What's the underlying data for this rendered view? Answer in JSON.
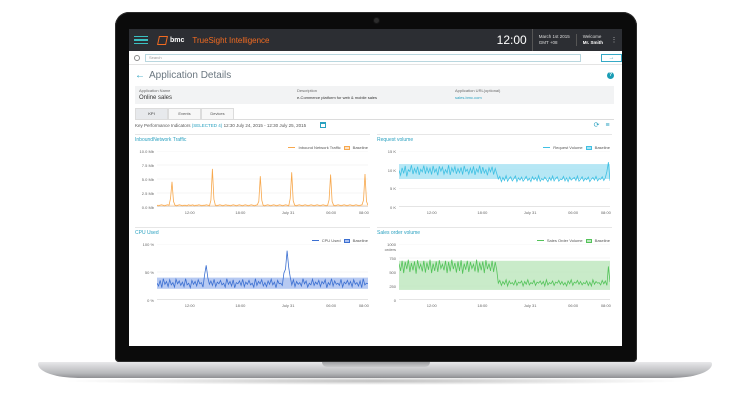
{
  "app": {
    "brand": "bmc",
    "product": "TrueSight Intelligence",
    "time": "12:00",
    "date_line1": "March 1st 2015",
    "date_line2": "GMT +08",
    "welcome_label": "Welcome",
    "user_name": "Mr. Smith",
    "search_placeholder": "Search"
  },
  "page": {
    "title": "Application Details",
    "app_name_label": "Application Name",
    "app_name": "Online sales",
    "description_label": "Description",
    "description": "e-Commerce platform for web & mobile sales",
    "url_label": "Application URL(optional)",
    "url": "sales.bmc.com"
  },
  "tabs": [
    "KPI",
    "Events",
    "Devices"
  ],
  "kpi_range": {
    "prefix": "Key Performance Indicators",
    "selected": "(SELECTED 4)",
    "range": "12:30 July 24, 2015 - 12:30 July 25, 2015"
  },
  "colors": {
    "accent": "#2aa1c0",
    "orange": "#f7a84d",
    "orange_band": "#fde2c5",
    "blue_series": "#3fc0e3",
    "blue_band": "#a9e3f3",
    "cpu": "#3b6fd1",
    "cpu_band": "#a9bff0",
    "green": "#54c35a",
    "green_band": "#bfe8c0",
    "brand_orange": "#f26b21"
  },
  "chart_data": [
    {
      "type": "line",
      "title": "InboundNetwork Traffic",
      "legend": [
        "Inbound Network Traffic",
        "Baseline"
      ],
      "y_ticks": [
        "10.0 Mb",
        "7.5 Mb",
        "5.0 Mb",
        "2.5 Mb",
        "0.0 Mb"
      ],
      "ylim": [
        0,
        10
      ],
      "x_ticks": [
        "12:00",
        "18:00",
        "July 31",
        "06:00",
        "08:00"
      ],
      "series": [
        {
          "name": "Inbound Network Traffic",
          "baseline_band": [
            0.1,
            0.4
          ],
          "values": [
            0.3,
            0.2,
            0.3,
            0.4,
            0.3,
            0.2,
            0.3,
            0.4,
            0.3,
            1.5,
            4.5,
            1.0,
            0.3,
            0.2,
            0.3,
            0.4,
            0.3,
            0.2,
            0.3,
            0.3,
            0.2,
            0.4,
            0.3,
            0.3,
            0.4,
            0.2,
            0.3,
            0.3,
            0.4,
            0.3,
            0.2,
            0.3,
            0.3,
            0.4,
            0.3,
            0.2,
            1.2,
            6.8,
            1.4,
            0.3,
            0.2,
            0.3,
            0.4,
            0.3,
            0.2,
            0.3,
            0.4,
            0.3,
            0.3,
            0.2,
            0.3,
            0.4,
            0.3,
            0.2,
            0.3,
            0.4,
            0.3,
            0.2,
            0.3,
            0.4,
            0.3,
            0.2,
            0.3,
            0.4,
            0.3,
            0.2,
            0.3,
            0.4,
            1.0,
            5.5,
            1.2,
            0.3,
            0.2,
            0.3,
            0.4,
            0.3,
            0.2,
            0.3,
            0.4,
            0.3,
            0.2,
            0.3,
            0.4,
            0.3,
            0.2,
            0.3,
            0.4,
            0.3,
            0.2,
            1.5,
            6.2,
            1.1,
            0.3,
            0.2,
            0.3,
            0.4,
            0.3,
            0.2,
            0.3,
            0.4,
            0.3,
            0.2,
            0.3,
            0.4,
            0.3,
            0.2,
            0.3,
            0.4,
            0.3,
            0.2,
            0.3,
            0.4,
            0.3,
            0.2,
            0.3,
            1.3,
            5.8,
            1.0,
            0.3,
            0.2,
            0.3,
            0.4,
            0.3,
            0.2,
            0.3,
            0.4,
            0.3,
            0.2,
            0.3,
            0.4,
            0.3,
            0.2,
            0.3,
            0.4,
            0.3,
            0.2,
            0.3,
            0.4,
            1.2,
            5.9,
            1.0,
            0.3
          ]
        }
      ]
    },
    {
      "type": "line",
      "title": "Request volume",
      "legend": [
        "Request Volume",
        "Baseline"
      ],
      "y_ticks": [
        "15 K",
        "10 K",
        "5 K",
        "0 K"
      ],
      "ylim": [
        0,
        15
      ],
      "x_ticks": [
        "12:00",
        "18:00",
        "July 31",
        "06:00",
        "08:00"
      ],
      "series": [
        {
          "name": "Request Volume",
          "baseline_band": [
            7.5,
            11.5
          ],
          "values": [
            9.8,
            8.5,
            10.5,
            9.0,
            11.0,
            8.2,
            10.0,
            9.5,
            11.2,
            8.8,
            10.3,
            9.1,
            10.8,
            8.6,
            10.1,
            9.4,
            11.1,
            8.9,
            10.6,
            9.2,
            10.4,
            8.7,
            11.0,
            9.3,
            10.2,
            8.5,
            10.9,
            9.6,
            10.7,
            8.8,
            10.0,
            9.1,
            11.2,
            8.6,
            10.5,
            9.4,
            10.8,
            8.9,
            10.3,
            9.2,
            10.6,
            8.7,
            11.0,
            9.5,
            10.1,
            8.8,
            10.4,
            9.0,
            10.9,
            8.6,
            10.2,
            9.3,
            11.1,
            8.9,
            10.7,
            9.1,
            10.0,
            8.5,
            10.5,
            9.4,
            10.8,
            8.7,
            10.3,
            9.0,
            7.5,
            8.2,
            6.8,
            7.9,
            7.1,
            8.4,
            6.9,
            7.7,
            8.1,
            7.0,
            7.6,
            8.3,
            6.8,
            7.8,
            7.2,
            8.0,
            6.9,
            7.5,
            8.2,
            7.1,
            7.7,
            6.8,
            8.1,
            7.3,
            7.9,
            7.0,
            8.4,
            6.9,
            7.6,
            7.2,
            8.0,
            7.4,
            6.8,
            7.9,
            7.1,
            8.3,
            7.0,
            7.7,
            8.1,
            6.9,
            7.5,
            7.3,
            8.2,
            7.0,
            7.8,
            6.8,
            8.0,
            7.2,
            7.6,
            7.9,
            7.1,
            8.3,
            6.9,
            7.4,
            8.1,
            7.0,
            7.7,
            7.3,
            8.0,
            6.8,
            7.5,
            7.9,
            7.2,
            8.2,
            7.0,
            7.6,
            7.4,
            8.1,
            7.1,
            7.8,
            9.5,
            12.0,
            7.0
          ]
        }
      ]
    },
    {
      "type": "line",
      "title": "CPU Used",
      "legend": [
        "CPU Used",
        "Baseline"
      ],
      "y_ticks": [
        "100 %",
        "50 %",
        "0 %"
      ],
      "ylim": [
        0,
        100
      ],
      "x_ticks": [
        "12:00",
        "18:00",
        "July 31",
        "06:00",
        "08:00"
      ],
      "series": [
        {
          "name": "CPU Used",
          "baseline_band": [
            20,
            40
          ],
          "values": [
            30,
            25,
            35,
            22,
            38,
            28,
            33,
            24,
            36,
            27,
            31,
            23,
            37,
            29,
            34,
            26,
            32,
            24,
            38,
            27,
            30,
            22,
            35,
            28,
            33,
            25,
            36,
            29,
            31,
            23,
            45,
            62,
            40,
            28,
            34,
            26,
            37,
            24,
            32,
            29,
            35,
            27,
            30,
            23,
            38,
            28,
            33,
            25,
            36,
            22,
            31,
            29,
            34,
            26,
            37,
            24,
            32,
            28,
            35,
            27,
            30,
            23,
            38,
            26,
            33,
            29,
            36,
            25,
            31,
            24,
            34,
            28,
            37,
            27,
            32,
            22,
            35,
            29,
            30,
            26,
            48,
            55,
            88,
            58,
            40,
            27,
            36,
            24,
            33,
            28,
            31,
            25,
            38,
            29,
            34,
            23,
            30,
            27,
            37,
            26,
            32,
            28,
            35,
            24,
            33,
            29,
            36,
            22,
            31,
            27,
            38,
            25,
            34,
            28,
            30,
            26,
            37,
            23,
            32,
            29,
            35,
            27,
            33,
            24,
            36,
            28,
            31,
            25,
            34,
            22,
            38,
            27,
            30,
            29
          ]
        }
      ]
    },
    {
      "type": "line",
      "title": "Sales order volume",
      "legend": [
        "Sales Order Volume",
        "Baseline"
      ],
      "y_ticks": [
        "1000 orders",
        "750",
        "500",
        "250",
        "0"
      ],
      "ylim": [
        0,
        1000
      ],
      "x_ticks": [
        "12:00",
        "18:00",
        "July 31",
        "06:00",
        "08:00"
      ],
      "series": [
        {
          "name": "Sales Order Volume",
          "baseline_band": [
            180,
            700
          ],
          "values": [
            650,
            520,
            700,
            480,
            680,
            550,
            720,
            500,
            660,
            530,
            690,
            470,
            710,
            560,
            640,
            510,
            700,
            490,
            670,
            540,
            720,
            480,
            650,
            520,
            690,
            500,
            710,
            560,
            640,
            530,
            700,
            480,
            680,
            510,
            720,
            550,
            660,
            490,
            690,
            520,
            710,
            470,
            650,
            540,
            700,
            500,
            680,
            560,
            640,
            510,
            720,
            490,
            670,
            530,
            690,
            480,
            710,
            550,
            650,
            520,
            700,
            500,
            680,
            540,
            300,
            350,
            260,
            330,
            280,
            360,
            250,
            340,
            290,
            310,
            270,
            350,
            260,
            320,
            300,
            340,
            250,
            330,
            280,
            360,
            270,
            310,
            290,
            350,
            260,
            320,
            300,
            340,
            280,
            330,
            250,
            360,
            270,
            310,
            290,
            340,
            260,
            320,
            300,
            350,
            280,
            330,
            270,
            310,
            250,
            340,
            290,
            360,
            260,
            320,
            300,
            350,
            280,
            330,
            270,
            310,
            290,
            340,
            260,
            320,
            250,
            360,
            280,
            330,
            300,
            310,
            270,
            350,
            290,
            340,
            260,
            600,
            320
          ]
        }
      ]
    }
  ]
}
